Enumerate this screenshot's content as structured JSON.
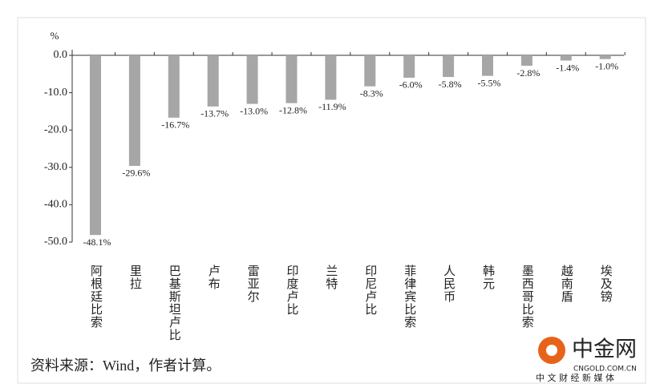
{
  "chart_data": {
    "type": "bar",
    "y_unit": "%",
    "categories": [
      "阿根廷比索",
      "里拉",
      "巴基斯坦卢比",
      "卢布",
      "雷亚尔",
      "印度卢比",
      "兰特",
      "印尼卢比",
      "菲律宾比索",
      "人民币",
      "韩元",
      "墨西哥比索",
      "越南盾",
      "埃及镑"
    ],
    "values": [
      -48.1,
      -29.6,
      -16.7,
      -13.7,
      -13.0,
      -12.8,
      -11.9,
      -8.3,
      -6.0,
      -5.8,
      -5.5,
      -2.8,
      -1.4,
      -1.0
    ],
    "value_labels": [
      "-48.1%",
      "-29.6%",
      "-16.7%",
      "-13.7%",
      "-13.0%",
      "-12.8%",
      "-11.9%",
      "-8.3%",
      "-6.0%",
      "-5.8%",
      "-5.5%",
      "-2.8%",
      "-1.4%",
      "-1.0%"
    ],
    "color": "#a6a6a6",
    "ylim": [
      -50,
      0
    ],
    "yticks": [
      {
        "value": 0,
        "label": "0.0"
      },
      {
        "value": -10,
        "label": "-10.0"
      },
      {
        "value": -20,
        "label": "-20.0"
      },
      {
        "value": -30,
        "label": "-30.0"
      },
      {
        "value": -40,
        "label": "-40.0"
      },
      {
        "value": -50,
        "label": "-50.0"
      }
    ],
    "source": "资料来源：Wind，作者计算。"
  },
  "watermark": {
    "brand": "中金网",
    "domain": "CNGOLD.COM.CN",
    "slogan": "中 文 财 经 新 媒 体"
  }
}
